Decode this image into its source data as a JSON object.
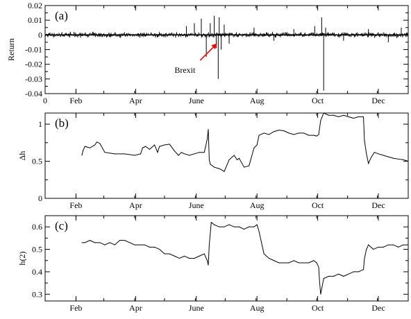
{
  "chart_data": [
    {
      "type": "line",
      "panel_label": "(a)",
      "xlabel": "",
      "ylabel": "Return",
      "xlim": [
        0,
        365
      ],
      "ylim": [
        -0.04,
        0.02
      ],
      "grid": false,
      "x_tick_labels": [
        "0",
        "Feb",
        "Apr",
        "June",
        "Aug",
        "Oct",
        "Dec"
      ],
      "x_tick_positions": [
        0,
        31,
        91,
        152,
        213,
        274,
        335
      ],
      "y_ticks": [
        0.02,
        0.01,
        0,
        -0.01,
        -0.02,
        -0.03,
        -0.04
      ],
      "y_tick_labels": [
        "0.02",
        "0.01",
        "0",
        "-0.01",
        "-0.02",
        "-0.03",
        "-0.04"
      ],
      "annotation": {
        "text": "Brexit",
        "x": 174,
        "y": -0.005,
        "arrow_color": "#ff0000"
      },
      "noise_amplitude": 0.0015,
      "spikes": [
        {
          "x": 142,
          "value": 0.006
        },
        {
          "x": 150,
          "value": 0.008
        },
        {
          "x": 157,
          "value": 0.011
        },
        {
          "x": 162,
          "value": -0.015
        },
        {
          "x": 166,
          "value": 0.008
        },
        {
          "x": 170,
          "value": 0.013
        },
        {
          "x": 172,
          "value": -0.009
        },
        {
          "x": 174,
          "value": -0.03
        },
        {
          "x": 175,
          "value": 0.012
        },
        {
          "x": 177,
          "value": -0.01
        },
        {
          "x": 180,
          "value": 0.007
        },
        {
          "x": 185,
          "value": -0.006
        },
        {
          "x": 210,
          "value": 0.005
        },
        {
          "x": 230,
          "value": -0.004
        },
        {
          "x": 250,
          "value": 0.004
        },
        {
          "x": 271,
          "value": 0.006
        },
        {
          "x": 278,
          "value": 0.012
        },
        {
          "x": 280,
          "value": -0.038
        },
        {
          "x": 282,
          "value": 0.005
        },
        {
          "x": 300,
          "value": -0.004
        },
        {
          "x": 325,
          "value": 0.004
        },
        {
          "x": 345,
          "value": -0.005
        },
        {
          "x": 358,
          "value": 0.005
        }
      ]
    },
    {
      "type": "line",
      "panel_label": "(b)",
      "xlabel": "",
      "ylabel": "Δh",
      "xlim": [
        0,
        365
      ],
      "ylim": [
        0,
        1.15
      ],
      "grid": false,
      "x_tick_labels": [
        "Feb",
        "Apr",
        "June",
        "Aug",
        "Oct",
        "Dec"
      ],
      "x_tick_positions": [
        31,
        91,
        152,
        213,
        274,
        335
      ],
      "y_ticks": [
        0,
        0.5,
        1
      ],
      "y_tick_labels": [
        "0",
        "0.5",
        "1"
      ],
      "x": [
        37,
        38,
        40,
        45,
        50,
        52,
        55,
        60,
        70,
        80,
        90,
        96,
        98,
        101,
        105,
        110,
        113,
        115,
        120,
        125,
        130,
        134,
        137,
        140,
        145,
        150,
        155,
        160,
        163,
        164,
        165,
        166,
        170,
        175,
        178,
        180,
        185,
        190,
        193,
        195,
        200,
        205,
        210,
        213,
        215,
        220,
        225,
        230,
        235,
        240,
        245,
        250,
        255,
        260,
        265,
        270,
        273,
        275,
        277,
        280,
        285,
        290,
        295,
        300,
        305,
        310,
        315,
        320,
        321,
        323,
        325,
        328,
        331,
        335,
        340,
        345,
        350,
        355,
        360,
        365
      ],
      "y": [
        0.58,
        0.64,
        0.7,
        0.68,
        0.72,
        0.76,
        0.74,
        0.62,
        0.6,
        0.6,
        0.58,
        0.6,
        0.68,
        0.7,
        0.66,
        0.72,
        0.62,
        0.7,
        0.72,
        0.73,
        0.64,
        0.58,
        0.62,
        0.6,
        0.58,
        0.6,
        0.62,
        0.62,
        0.8,
        0.93,
        0.52,
        0.46,
        0.42,
        0.4,
        0.38,
        0.36,
        0.52,
        0.58,
        0.52,
        0.54,
        0.42,
        0.44,
        0.68,
        0.72,
        0.85,
        0.88,
        0.86,
        0.9,
        0.92,
        0.91,
        0.88,
        0.86,
        0.88,
        0.88,
        0.85,
        0.85,
        0.84,
        0.86,
        1.05,
        1.15,
        1.12,
        1.12,
        1.1,
        1.12,
        1.1,
        1.08,
        1.1,
        1.1,
        0.78,
        0.6,
        0.47,
        0.56,
        0.62,
        0.6,
        0.58,
        0.56,
        0.54,
        0.53,
        0.52,
        0.5
      ]
    },
    {
      "type": "line",
      "panel_label": "(c)",
      "xlabel": "",
      "ylabel": "h(2)",
      "xlim": [
        0,
        365
      ],
      "ylim": [
        0.27,
        0.65
      ],
      "grid": false,
      "x_tick_labels": [
        "Feb",
        "Apr",
        "June",
        "Aug",
        "Oct",
        "Dec"
      ],
      "x_tick_positions": [
        31,
        91,
        152,
        213,
        274,
        335
      ],
      "y_ticks": [
        0.3,
        0.4,
        0.5,
        0.6
      ],
      "y_tick_labels": [
        "0.3",
        "0.4",
        "0.5",
        "0.6"
      ],
      "x": [
        37,
        40,
        45,
        50,
        55,
        60,
        65,
        70,
        75,
        80,
        85,
        90,
        95,
        100,
        105,
        110,
        115,
        120,
        125,
        130,
        135,
        140,
        145,
        150,
        155,
        160,
        163,
        164,
        165,
        167,
        170,
        175,
        180,
        185,
        190,
        195,
        200,
        205,
        210,
        213,
        215,
        220,
        225,
        230,
        235,
        240,
        245,
        250,
        255,
        260,
        265,
        270,
        273,
        275,
        276,
        277,
        280,
        285,
        290,
        295,
        300,
        305,
        310,
        315,
        320,
        321,
        323,
        325,
        330,
        335,
        340,
        345,
        350,
        355,
        360,
        365
      ],
      "y": [
        0.53,
        0.53,
        0.54,
        0.53,
        0.53,
        0.52,
        0.53,
        0.52,
        0.54,
        0.54,
        0.53,
        0.52,
        0.52,
        0.52,
        0.51,
        0.51,
        0.5,
        0.48,
        0.48,
        0.47,
        0.46,
        0.47,
        0.46,
        0.46,
        0.47,
        0.48,
        0.45,
        0.43,
        0.52,
        0.62,
        0.61,
        0.6,
        0.6,
        0.61,
        0.6,
        0.6,
        0.59,
        0.6,
        0.6,
        0.61,
        0.58,
        0.48,
        0.46,
        0.45,
        0.44,
        0.44,
        0.44,
        0.45,
        0.44,
        0.44,
        0.44,
        0.45,
        0.44,
        0.42,
        0.35,
        0.3,
        0.37,
        0.38,
        0.38,
        0.39,
        0.38,
        0.39,
        0.4,
        0.4,
        0.41,
        0.46,
        0.5,
        0.52,
        0.5,
        0.51,
        0.51,
        0.52,
        0.52,
        0.51,
        0.52,
        0.52
      ]
    }
  ]
}
